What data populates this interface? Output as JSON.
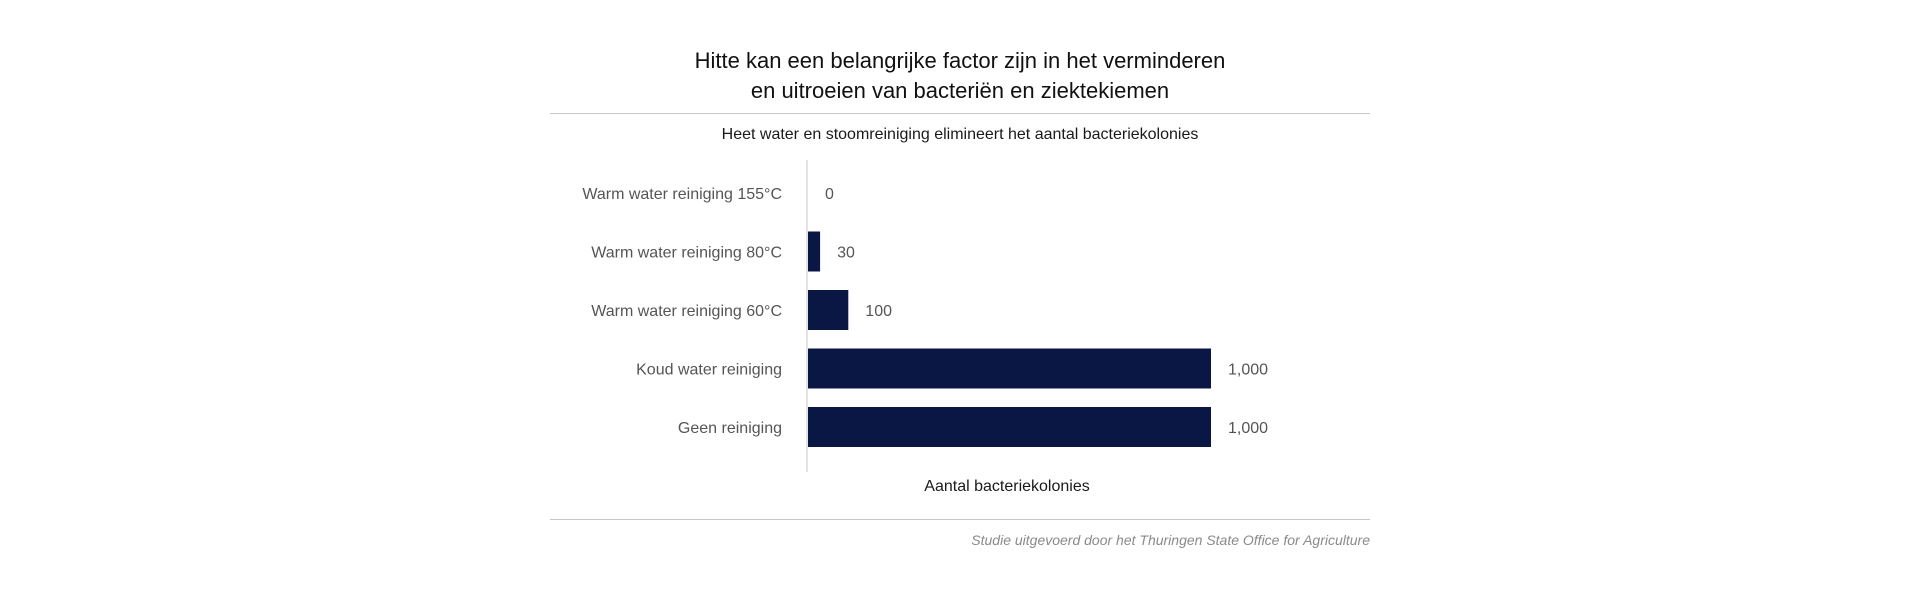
{
  "chart_data": {
    "type": "bar",
    "orientation": "horizontal",
    "title": "Hitte kan een belangrijke factor zijn in het verminderen\nen uitroeien van bacteriën en ziektekiemen",
    "subtitle": "Heet water en stoomreiniging elimineert het aantal bacteriekolonies",
    "xlabel": "Aantal bacteriekolonies",
    "source": "Studie uitgevoerd door het Thuringen State Office for Agriculture",
    "categories": [
      "Warm water reiniging 155°C",
      "Warm water reiniging 80°C",
      "Warm water reiniging 60°C",
      "Koud water reiniging",
      "Geen reiniging"
    ],
    "values": [
      0,
      30,
      100,
      1000,
      1000
    ],
    "value_labels": [
      "0",
      "30",
      "100",
      "1,000",
      "1,000"
    ],
    "xlim": [
      0,
      1000
    ],
    "bar_color": "#0a1744",
    "grid": false,
    "legend": "none"
  }
}
